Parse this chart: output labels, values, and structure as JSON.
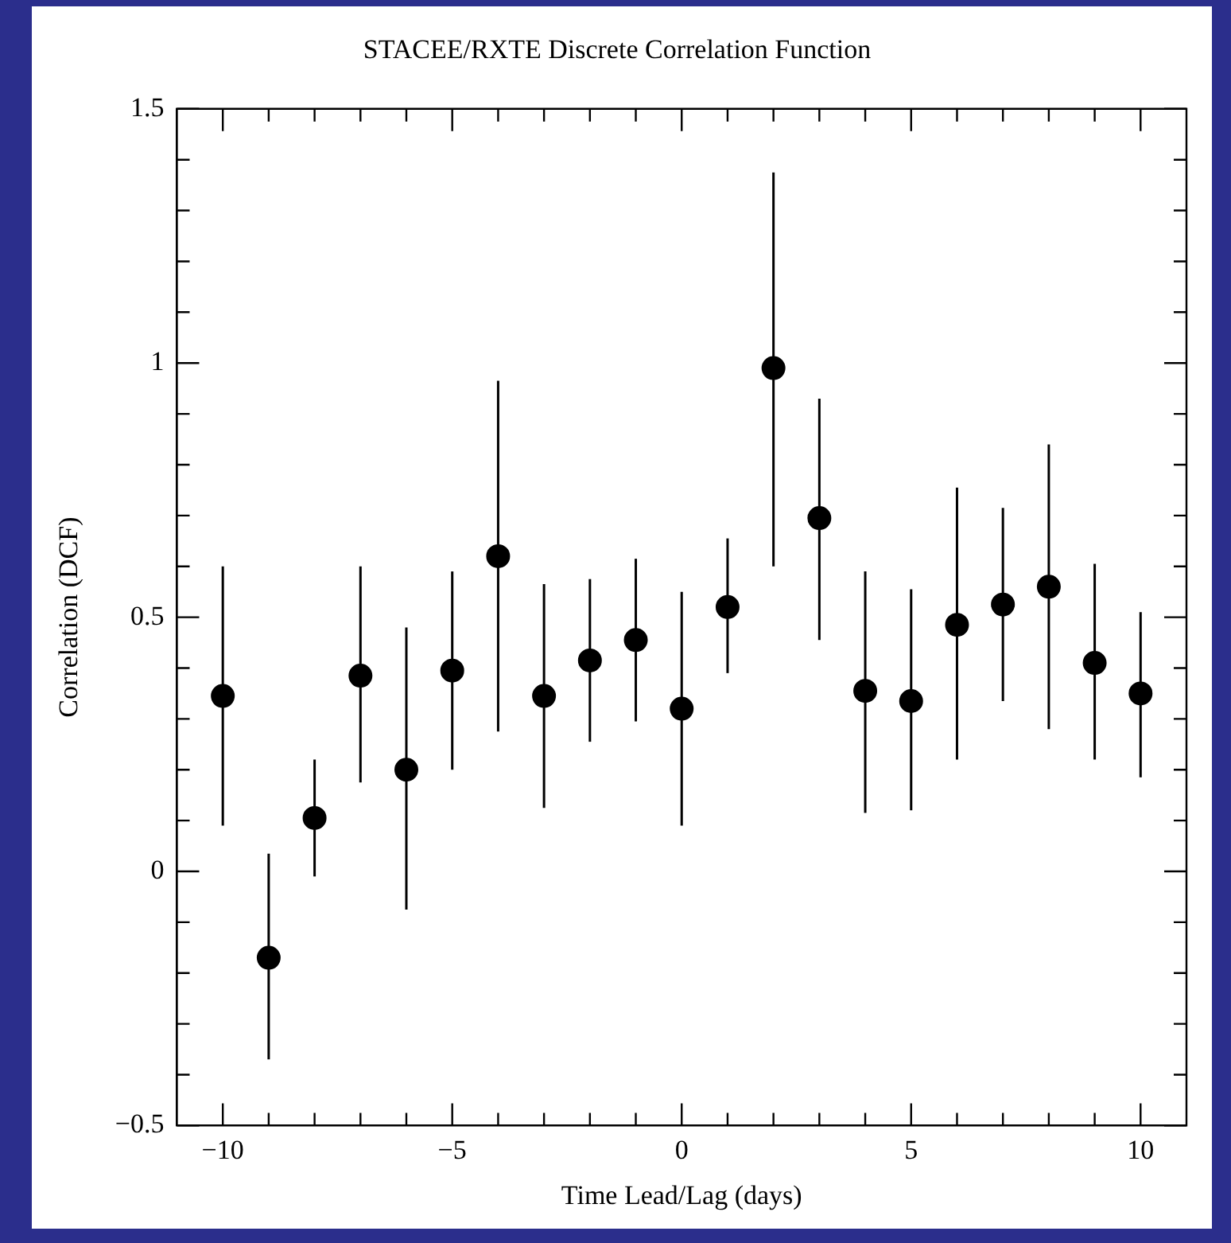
{
  "chart_data": {
    "type": "scatter",
    "title": "STACEE/RXTE Discrete Correlation Function",
    "xlabel": "Time Lead/Lag (days)",
    "ylabel": "Correlation (DCF)",
    "x": [
      -10,
      -9,
      -8,
      -7,
      -6,
      -5,
      -4,
      -3,
      -2,
      -1,
      0,
      1,
      2,
      3,
      4,
      5,
      6,
      7,
      8,
      9,
      10
    ],
    "series": [
      {
        "color": "#000000",
        "values": [
          0.345,
          -0.17,
          0.105,
          0.385,
          0.2,
          0.395,
          0.62,
          0.345,
          0.415,
          0.455,
          0.32,
          0.52,
          0.99,
          0.695,
          0.355,
          0.335,
          0.485,
          0.525,
          0.56,
          0.41,
          0.35
        ],
        "errors": [
          [
            0.09,
            0.6
          ],
          [
            -0.37,
            0.035
          ],
          [
            -0.01,
            0.22
          ],
          [
            0.175,
            0.6
          ],
          [
            -0.075,
            0.48
          ],
          [
            0.2,
            0.59
          ],
          [
            0.275,
            0.965
          ],
          [
            0.125,
            0.565
          ],
          [
            0.255,
            0.575
          ],
          [
            0.295,
            0.615
          ],
          [
            0.09,
            0.55
          ],
          [
            0.39,
            0.655
          ],
          [
            0.6,
            1.375
          ],
          [
            0.455,
            0.93
          ],
          [
            0.115,
            0.59
          ],
          [
            0.12,
            0.555
          ],
          [
            0.22,
            0.755
          ],
          [
            0.335,
            0.715
          ],
          [
            0.28,
            0.84
          ],
          [
            0.22,
            0.605
          ],
          [
            0.185,
            0.51
          ]
        ]
      }
    ],
    "xlim": [
      -11,
      11
    ],
    "xticks": [
      {
        "value": -10,
        "label": "−10"
      },
      {
        "value": -9,
        "label": null
      },
      {
        "value": -8,
        "label": null
      },
      {
        "value": -7,
        "label": null
      },
      {
        "value": -6,
        "label": null
      },
      {
        "value": -5,
        "label": "−5"
      },
      {
        "value": -4,
        "label": null
      },
      {
        "value": -3,
        "label": null
      },
      {
        "value": -2,
        "label": null
      },
      {
        "value": -1,
        "label": null
      },
      0,
      {
        "value": 1,
        "label": null
      },
      {
        "value": 2,
        "label": null
      },
      {
        "value": 3,
        "label": null
      },
      {
        "value": 4,
        "label": null
      },
      5,
      {
        "value": 6,
        "label": null
      },
      {
        "value": 7,
        "label": null
      },
      {
        "value": 8,
        "label": null
      },
      {
        "value": 9,
        "label": null
      },
      10
    ],
    "ylim": [
      -0.5,
      1.5
    ],
    "yticks": [
      {
        "value": -0.5,
        "label": "−0.5"
      },
      {
        "value": -0.4,
        "label": null
      },
      {
        "value": -0.3,
        "label": null
      },
      {
        "value": -0.2,
        "label": null
      },
      {
        "value": -0.1,
        "label": null
      },
      0,
      {
        "value": 0.1,
        "label": null
      },
      {
        "value": 0.2,
        "label": null
      },
      {
        "value": 0.3,
        "label": null
      },
      {
        "value": 0.4,
        "label": null
      },
      0.5,
      {
        "value": 0.6,
        "label": null
      },
      {
        "value": 0.7,
        "label": null
      },
      {
        "value": 0.8,
        "label": null
      },
      {
        "value": 0.9,
        "label": null
      },
      1,
      {
        "value": 1.1,
        "label": null
      },
      {
        "value": 1.2,
        "label": null
      },
      {
        "value": 1.3,
        "label": null
      },
      {
        "value": 1.4,
        "label": null
      },
      1.5
    ],
    "marker": "circle",
    "grid": false,
    "legend": false
  }
}
